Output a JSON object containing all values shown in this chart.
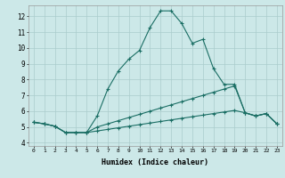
{
  "xlabel": "Humidex (Indice chaleur)",
  "background_color": "#cce8e8",
  "grid_color": "#aacccc",
  "line_color": "#1a6e64",
  "xlim": [
    -0.5,
    23.5
  ],
  "ylim": [
    3.8,
    12.7
  ],
  "yticks": [
    4,
    5,
    6,
    7,
    8,
    9,
    10,
    11,
    12
  ],
  "xticks": [
    0,
    1,
    2,
    3,
    4,
    5,
    6,
    7,
    8,
    9,
    10,
    11,
    12,
    13,
    14,
    15,
    16,
    17,
    18,
    19,
    20,
    21,
    22,
    23
  ],
  "series1_x": [
    0,
    1,
    2,
    3,
    4,
    5,
    6,
    7,
    8,
    9,
    10,
    11,
    12,
    13,
    14,
    15,
    16,
    17,
    18,
    19,
    20,
    21,
    22,
    23
  ],
  "series1_y": [
    5.3,
    5.2,
    5.05,
    4.65,
    4.65,
    4.65,
    5.7,
    7.4,
    8.55,
    9.3,
    9.85,
    11.3,
    12.35,
    12.35,
    11.55,
    10.3,
    10.55,
    8.7,
    7.7,
    7.7,
    5.9,
    5.7,
    5.85,
    5.2
  ],
  "series2_x": [
    0,
    1,
    2,
    3,
    4,
    5,
    6,
    7,
    8,
    9,
    10,
    11,
    12,
    13,
    14,
    15,
    16,
    17,
    18,
    19,
    20,
    21,
    22,
    23
  ],
  "series2_y": [
    5.3,
    5.2,
    5.05,
    4.65,
    4.65,
    4.65,
    5.0,
    5.2,
    5.4,
    5.6,
    5.8,
    6.0,
    6.2,
    6.4,
    6.6,
    6.8,
    7.0,
    7.2,
    7.4,
    7.6,
    5.9,
    5.7,
    5.85,
    5.2
  ],
  "series3_x": [
    0,
    1,
    2,
    3,
    4,
    5,
    6,
    7,
    8,
    9,
    10,
    11,
    12,
    13,
    14,
    15,
    16,
    17,
    18,
    19,
    20,
    21,
    22,
    23
  ],
  "series3_y": [
    5.3,
    5.2,
    5.05,
    4.65,
    4.65,
    4.65,
    4.75,
    4.85,
    4.95,
    5.05,
    5.15,
    5.25,
    5.35,
    5.45,
    5.55,
    5.65,
    5.75,
    5.85,
    5.95,
    6.05,
    5.9,
    5.7,
    5.85,
    5.2
  ]
}
